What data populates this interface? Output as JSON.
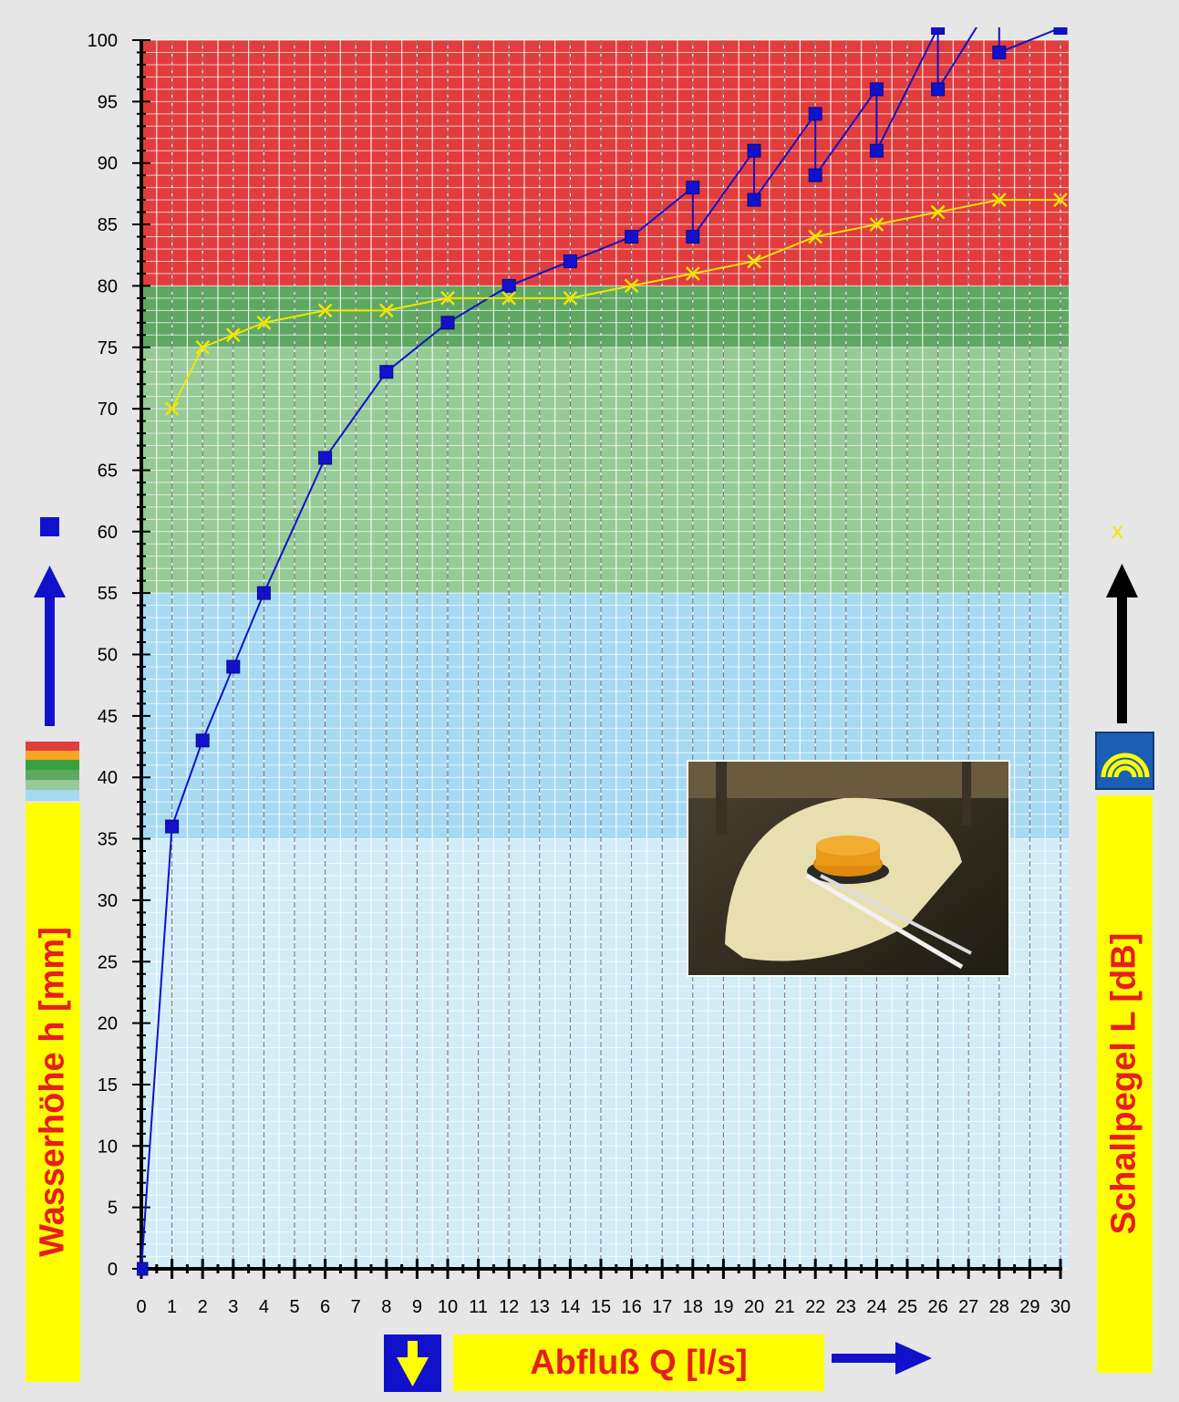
{
  "chart_data": {
    "type": "line",
    "xlabel": "Abfluß Q [l/s]",
    "ylabel": "Wasserhöhe h [mm]",
    "y2label": "Schallpegel L [dB]",
    "xlim": [
      0,
      30
    ],
    "ylim": [
      0,
      100
    ],
    "x_ticks": [
      "0",
      "1",
      "2",
      "3",
      "4",
      "5",
      "6",
      "7",
      "8",
      "9",
      "10",
      "11",
      "12",
      "13",
      "14",
      "15",
      "16",
      "17",
      "18",
      "19",
      "20",
      "21",
      "22",
      "23",
      "24",
      "25",
      "26",
      "27",
      "28",
      "29",
      "30"
    ],
    "y_ticks": [
      "0",
      "5",
      "10",
      "15",
      "20",
      "25",
      "30",
      "35",
      "40",
      "45",
      "50",
      "55",
      "60",
      "65",
      "70",
      "75",
      "80",
      "85",
      "90",
      "95",
      "100"
    ],
    "bands": [
      {
        "from": 0,
        "to": 35,
        "color": "#d2ecf8"
      },
      {
        "from": 35,
        "to": 55,
        "color": "#a6d9f2"
      },
      {
        "from": 55,
        "to": 75,
        "color": "#96ca96"
      },
      {
        "from": 75,
        "to": 80,
        "color": "#5ea862"
      },
      {
        "from": 80,
        "to": 100,
        "color": "#e23c3c"
      }
    ],
    "series": [
      {
        "marker": "square",
        "color": "#1111cc",
        "x": [
          0,
          1,
          2,
          3,
          4,
          6,
          8,
          10,
          12,
          14,
          16,
          18,
          18,
          20,
          20,
          22,
          22,
          24,
          24,
          26,
          26,
          28,
          28,
          30
        ],
        "y": [
          0,
          36,
          43,
          49,
          55,
          66,
          73,
          77,
          80,
          82,
          84,
          88,
          84,
          91,
          87,
          94,
          89,
          96,
          91,
          101,
          96,
          104,
          99,
          101
        ]
      },
      {
        "marker": "x",
        "color": "#f2e600",
        "x": [
          1,
          2,
          3,
          4,
          6,
          8,
          10,
          12,
          14,
          16,
          18,
          20,
          22,
          24,
          26,
          28,
          30
        ],
        "y": [
          70,
          75,
          76,
          77,
          78,
          78,
          79,
          79,
          79,
          80,
          81,
          82,
          84,
          85,
          86,
          87,
          87
        ]
      }
    ],
    "right_marker": "x"
  }
}
